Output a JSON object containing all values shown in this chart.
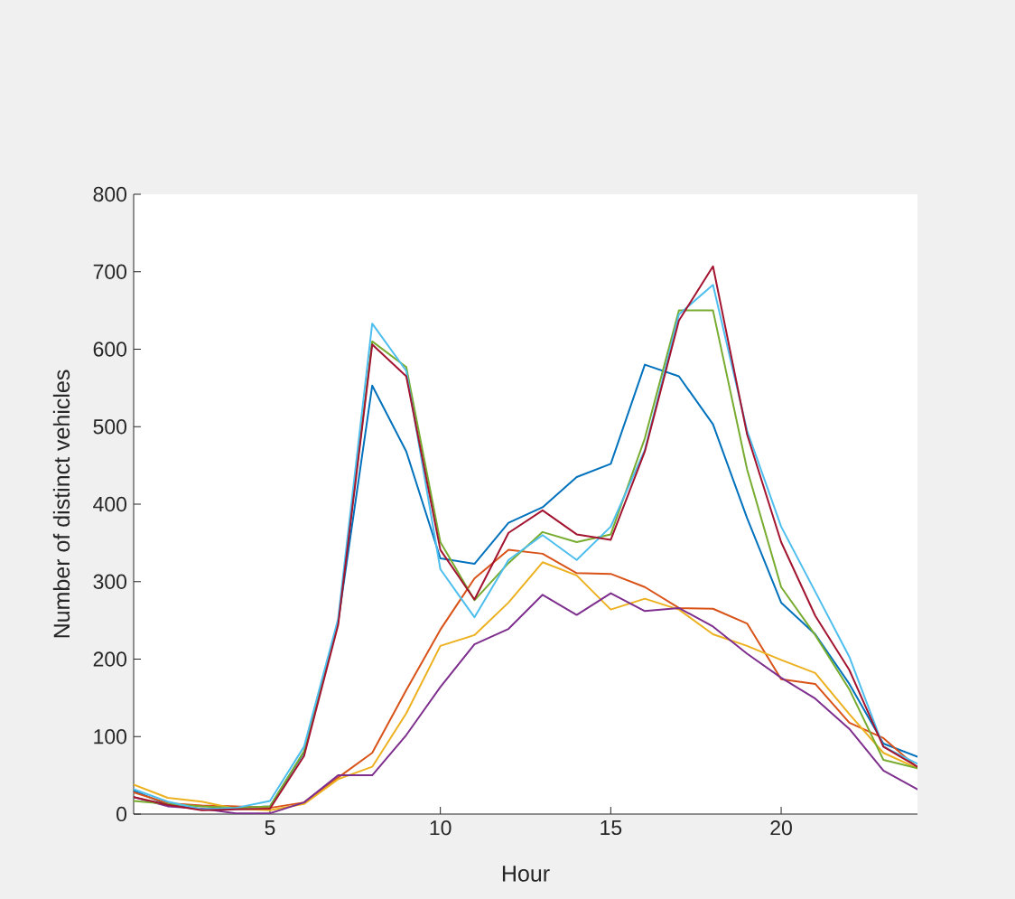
{
  "chart_data": {
    "type": "line",
    "xlabel": "Hour",
    "ylabel": "Number of distinct vehicles",
    "x": [
      1,
      2,
      3,
      4,
      5,
      6,
      7,
      8,
      9,
      10,
      11,
      12,
      13,
      14,
      15,
      16,
      17,
      18,
      19,
      20,
      21,
      22,
      23,
      24
    ],
    "xlim": [
      1,
      24
    ],
    "ylim": [
      0,
      800
    ],
    "xticks": [
      5,
      10,
      15,
      20
    ],
    "yticks": [
      0,
      100,
      200,
      300,
      400,
      500,
      600,
      700,
      800
    ],
    "series": [
      {
        "color": "#0072bd",
        "values": [
          30,
          12,
          6,
          8,
          10,
          80,
          248,
          553,
          468,
          330,
          323,
          376,
          396,
          435,
          452,
          580,
          565,
          503,
          382,
          273,
          232,
          168,
          91,
          74
        ]
      },
      {
        "color": "#d95319",
        "values": [
          28,
          14,
          11,
          10,
          8,
          15,
          47,
          79,
          160,
          238,
          304,
          341,
          336,
          311,
          310,
          293,
          266,
          265,
          246,
          174,
          168,
          118,
          98,
          60
        ]
      },
      {
        "color": "#edb120",
        "values": [
          38,
          21,
          16,
          7,
          5,
          13,
          45,
          61,
          130,
          217,
          231,
          273,
          325,
          308,
          264,
          278,
          264,
          232,
          217,
          199,
          182,
          129,
          79,
          59
        ]
      },
      {
        "color": "#7e2f8e",
        "values": [
          22,
          10,
          7,
          1,
          1,
          15,
          50,
          50,
          102,
          164,
          219,
          239,
          283,
          257,
          285,
          262,
          266,
          242,
          207,
          176,
          149,
          110,
          56,
          32
        ]
      },
      {
        "color": "#77ac30",
        "values": [
          17,
          13,
          10,
          8,
          10,
          81,
          248,
          610,
          577,
          351,
          276,
          324,
          364,
          351,
          361,
          485,
          650,
          650,
          445,
          293,
          231,
          161,
          70,
          59
        ]
      },
      {
        "color": "#4dbeee",
        "values": [
          32,
          16,
          6,
          8,
          17,
          87,
          252,
          633,
          572,
          316,
          254,
          328,
          360,
          328,
          371,
          470,
          645,
          683,
          495,
          371,
          287,
          203,
          87,
          65
        ]
      },
      {
        "color": "#a2142f",
        "values": [
          22,
          12,
          5,
          6,
          7,
          75,
          244,
          606,
          565,
          341,
          277,
          363,
          392,
          361,
          354,
          468,
          637,
          707,
          490,
          351,
          256,
          186,
          87,
          61
        ]
      }
    ]
  }
}
